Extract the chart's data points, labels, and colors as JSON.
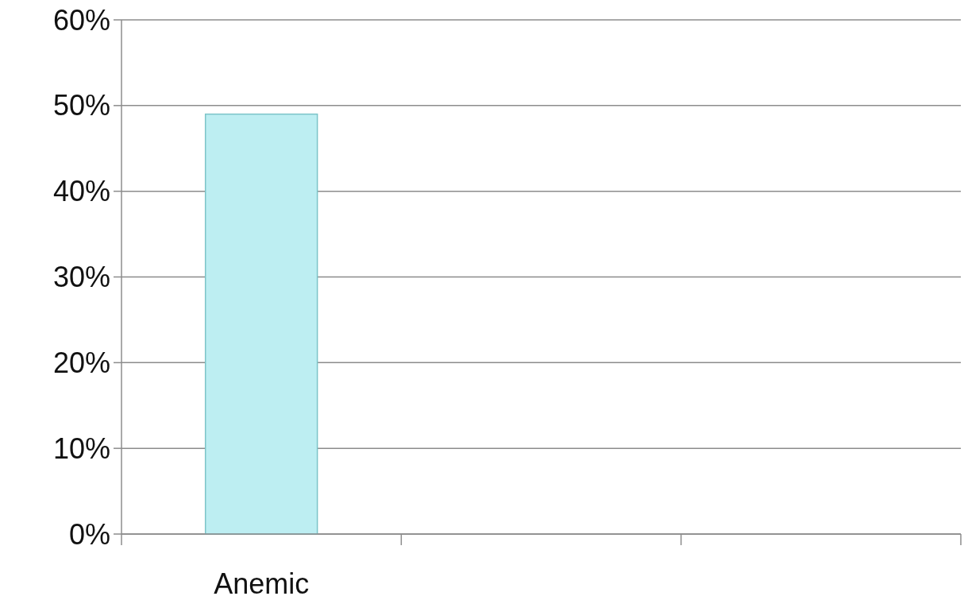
{
  "chart_data": {
    "type": "bar",
    "categories": [
      "Anemic",
      null,
      null
    ],
    "values": [
      49,
      null,
      null
    ],
    "color": "#bdeef2",
    "ylim": [
      0,
      60
    ],
    "yticks": [
      {
        "value": 0,
        "label": "0%"
      },
      {
        "value": 10,
        "label": "10%"
      },
      {
        "value": 20,
        "label": "20%"
      },
      {
        "value": 30,
        "label": "30%"
      },
      {
        "value": 40,
        "label": "40%"
      },
      {
        "value": 50,
        "label": "50%"
      },
      {
        "value": 60,
        "label": "60%"
      }
    ],
    "grid": "y"
  }
}
